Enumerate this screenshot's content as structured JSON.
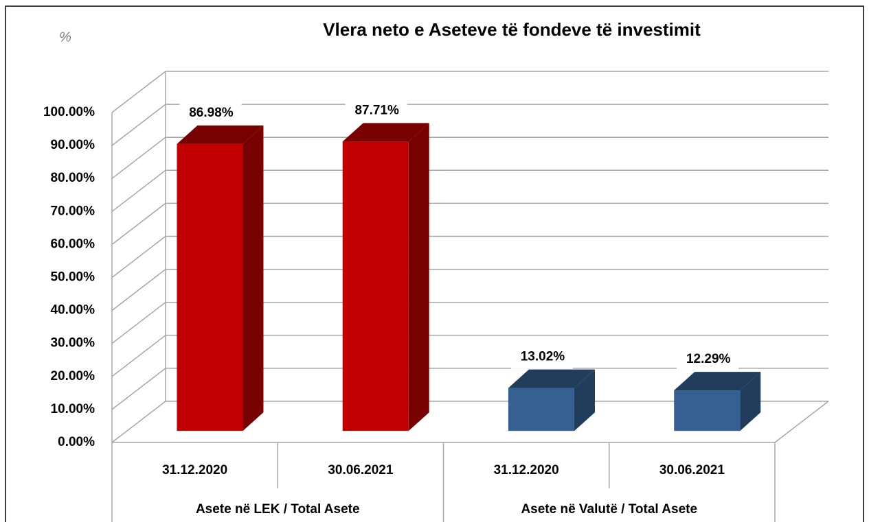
{
  "chart_data": {
    "type": "bar3d",
    "title": "Vlera neto e Aseteve të fondeve të investimit",
    "y_label": "%",
    "categories": [
      "31.12.2020",
      "30.06.2021",
      "31.12.2020",
      "30.06.2021"
    ],
    "groups": [
      {
        "name": "Asete në LEK / Total Asete",
        "size": 2
      },
      {
        "name": "Asete në Valutë / Total Asete",
        "size": 2
      }
    ],
    "values": [
      86.98,
      87.71,
      13.02,
      12.29
    ],
    "value_labels": [
      "86.98%",
      "87.71%",
      "13.02%",
      "12.29%"
    ],
    "colors": [
      "#c00000",
      "#c00000",
      "#376092",
      "#376092"
    ],
    "ylim": [
      0,
      100
    ],
    "yticks": [
      {
        "value": 0,
        "label": "0.00%"
      },
      {
        "value": 10,
        "label": "10.00%"
      },
      {
        "value": 20,
        "label": "20.00%"
      },
      {
        "value": 30,
        "label": "30.00%"
      },
      {
        "value": 40,
        "label": "40.00%"
      },
      {
        "value": 50,
        "label": "50.00%"
      },
      {
        "value": 60,
        "label": "60.00%"
      },
      {
        "value": 70,
        "label": "70.00%"
      },
      {
        "value": 80,
        "label": "80.00%"
      },
      {
        "value": 90,
        "label": "90.00%"
      },
      {
        "value": 100,
        "label": "100.00%"
      }
    ],
    "grid": true
  }
}
